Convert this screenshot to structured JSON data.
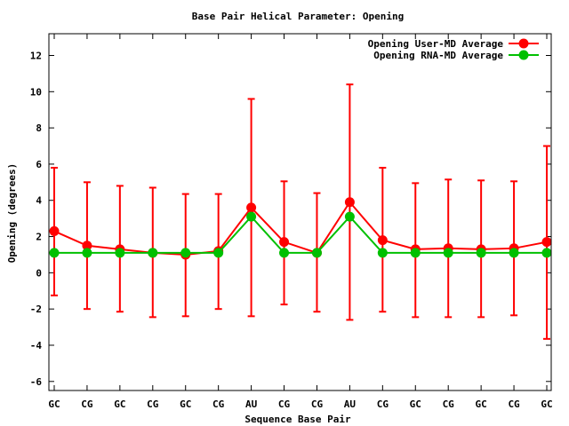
{
  "chart_data": {
    "type": "line",
    "title": "Base Pair Helical Parameter: Opening",
    "xlabel": "Sequence Base Pair",
    "ylabel": "Opening (degrees)",
    "categories": [
      "GC",
      "CG",
      "GC",
      "CG",
      "GC",
      "CG",
      "AU",
      "CG",
      "CG",
      "AU",
      "CG",
      "GC",
      "CG",
      "GC",
      "CG",
      "GC"
    ],
    "ylim": [
      -6.5,
      13.2
    ],
    "yticks": [
      -6,
      -4,
      -2,
      0,
      2,
      4,
      6,
      8,
      10,
      12
    ],
    "legend_position": "top-right",
    "series": [
      {
        "name": "Opening User-MD Average",
        "color": "#ff0000",
        "marker": "circle",
        "values": [
          2.3,
          1.5,
          1.3,
          1.1,
          1.0,
          1.2,
          3.6,
          1.7,
          1.1,
          3.9,
          1.8,
          1.3,
          1.35,
          1.3,
          1.35,
          1.7
        ],
        "error_low": [
          -1.25,
          -2.0,
          -2.15,
          -2.45,
          -2.4,
          -2.0,
          -2.4,
          -1.75,
          -2.15,
          -2.6,
          -2.15,
          -2.45,
          -2.45,
          -2.45,
          -2.35,
          -3.65
        ],
        "error_high": [
          5.8,
          5.0,
          4.8,
          4.7,
          4.35,
          4.35,
          9.6,
          5.05,
          4.4,
          10.4,
          5.8,
          4.95,
          5.15,
          5.1,
          5.05,
          7.0
        ]
      },
      {
        "name": "Opening RNA-MD Average",
        "color": "#00c000",
        "marker": "circle",
        "values": [
          1.1,
          1.1,
          1.1,
          1.1,
          1.1,
          1.1,
          3.1,
          1.1,
          1.1,
          3.1,
          1.1,
          1.1,
          1.1,
          1.1,
          1.1,
          1.1
        ]
      }
    ]
  }
}
